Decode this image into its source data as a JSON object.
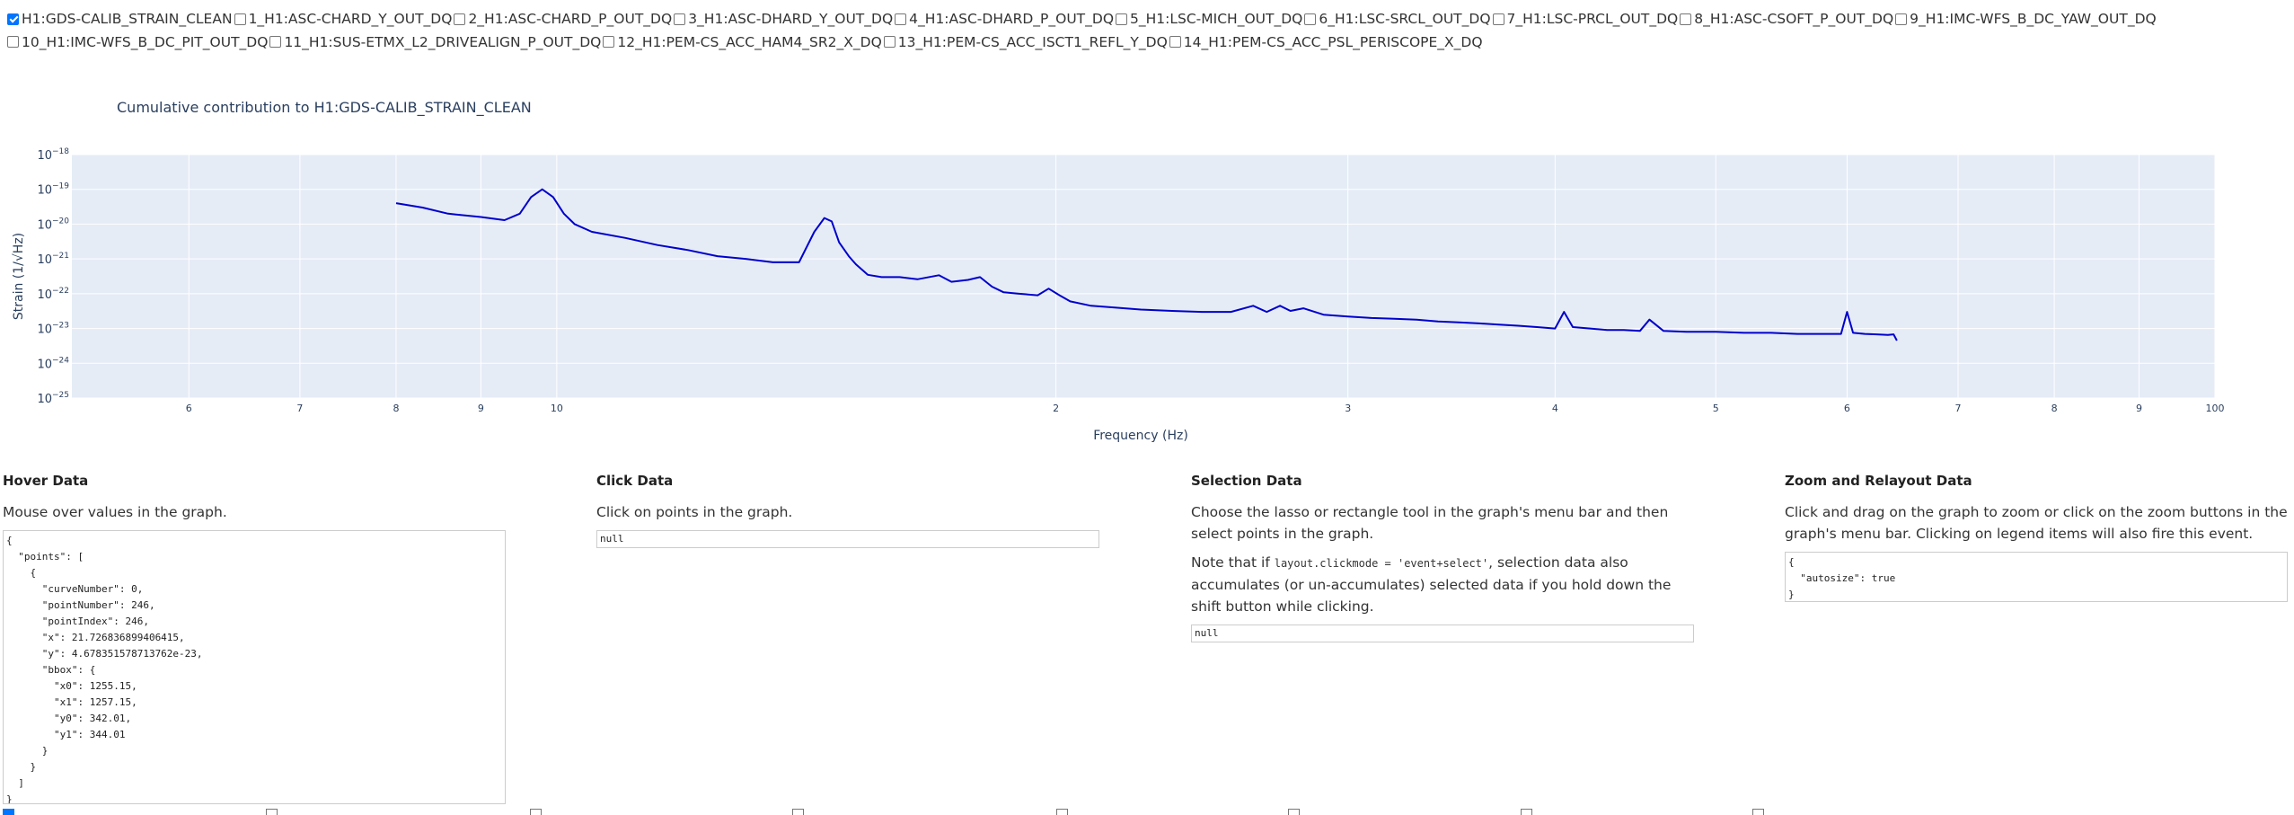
{
  "checklist": [
    {
      "label": "H1:GDS-CALIB_STRAIN_CLEAN",
      "checked": true
    },
    {
      "label": "1_H1:ASC-CHARD_Y_OUT_DQ",
      "checked": false
    },
    {
      "label": "2_H1:ASC-CHARD_P_OUT_DQ",
      "checked": false
    },
    {
      "label": "3_H1:ASC-DHARD_Y_OUT_DQ",
      "checked": false
    },
    {
      "label": "4_H1:ASC-DHARD_P_OUT_DQ",
      "checked": false
    },
    {
      "label": "5_H1:LSC-MICH_OUT_DQ",
      "checked": false
    },
    {
      "label": "6_H1:LSC-SRCL_OUT_DQ",
      "checked": false
    },
    {
      "label": "7_H1:LSC-PRCL_OUT_DQ",
      "checked": false
    },
    {
      "label": "8_H1:ASC-CSOFT_P_OUT_DQ",
      "checked": false
    },
    {
      "label": "9_H1:IMC-WFS_B_DC_YAW_OUT_DQ",
      "checked": false
    },
    {
      "label": "10_H1:IMC-WFS_B_DC_PIT_OUT_DQ",
      "checked": false
    },
    {
      "label": "11_H1:SUS-ETMX_L2_DRIVEALIGN_P_OUT_DQ",
      "checked": false
    },
    {
      "label": "12_H1:PEM-CS_ACC_HAM4_SR2_X_DQ",
      "checked": false
    },
    {
      "label": "13_H1:PEM-CS_ACC_ISCT1_REFL_Y_DQ",
      "checked": false
    },
    {
      "label": "14_H1:PEM-CS_ACC_PSL_PERISCOPE_X_DQ",
      "checked": false
    }
  ],
  "chart_data": {
    "type": "line",
    "title": "Cumulative contribution to H1:GDS-CALIB_STRAIN_CLEAN",
    "xlabel": "Frequency (Hz)",
    "ylabel": "Strain (1/√Hz)",
    "x_scale": "log",
    "y_scale": "log",
    "xlim": [
      5.1,
      100
    ],
    "ylim": [
      1e-25,
      1e-18
    ],
    "x_tick_labels": [
      "6",
      "7",
      "8",
      "9",
      "10",
      "2",
      "3",
      "4",
      "5",
      "6",
      "7",
      "8",
      "9",
      "100"
    ],
    "x_tick_values": [
      6,
      7,
      8,
      9,
      10,
      20,
      30,
      40,
      50,
      60,
      70,
      80,
      90,
      100
    ],
    "y_tick_labels": [
      {
        "base": "10",
        "exp": "−18"
      },
      {
        "base": "10",
        "exp": "−19"
      },
      {
        "base": "10",
        "exp": "−20"
      },
      {
        "base": "10",
        "exp": "−21"
      },
      {
        "base": "10",
        "exp": "−22"
      },
      {
        "base": "10",
        "exp": "−23"
      },
      {
        "base": "10",
        "exp": "−24"
      },
      {
        "base": "10",
        "exp": "−25"
      }
    ],
    "y_tick_values": [
      1e-18,
      1e-19,
      1e-20,
      1e-21,
      1e-22,
      1e-23,
      1e-24,
      1e-25
    ],
    "grid": true,
    "line_color": "#0000cc",
    "plot_bg": "#e5ecf6",
    "series": [
      {
        "x": [
          8.0,
          8.3,
          8.6,
          9.0,
          9.3,
          9.5,
          9.65,
          9.8,
          9.95,
          10.1,
          10.25,
          10.5,
          11.0,
          11.5,
          12.0,
          12.5,
          13.0,
          13.5,
          14.0,
          14.3,
          14.5,
          14.65,
          14.8,
          15.0,
          15.15,
          15.4,
          15.7,
          16.1,
          16.5,
          17.0,
          17.3,
          17.7,
          18.0,
          18.3,
          18.6,
          19.0,
          19.5,
          19.8,
          20.1,
          20.4,
          21.0,
          21.7,
          22.5,
          23.5,
          24.5,
          25.5,
          26.3,
          26.8,
          27.3,
          27.7,
          28.2,
          29.0,
          30.0,
          31.0,
          32.0,
          33.0,
          34.0,
          35.0,
          36.0,
          37.0,
          38.0,
          39.0,
          40.0,
          40.5,
          41.0,
          42.0,
          43.0,
          44.0,
          45.0,
          45.6,
          46.5,
          48.0,
          50.0,
          52.0,
          54.0,
          56.0,
          58.0,
          59.5,
          60.0,
          60.5,
          61.5,
          62.5,
          63.5,
          64.0,
          64.3
        ],
        "y": [
          4e-20,
          3e-20,
          2e-20,
          1.6e-20,
          1.3e-20,
          2e-20,
          6e-20,
          1e-19,
          6e-20,
          2e-20,
          1e-20,
          6e-21,
          4e-21,
          2.5e-21,
          1.8e-21,
          1.2e-21,
          1e-21,
          8e-22,
          8e-22,
          6e-21,
          1.5e-20,
          1.2e-20,
          3e-21,
          1.2e-21,
          7e-22,
          3.5e-22,
          3e-22,
          3e-22,
          2.6e-22,
          3.4e-22,
          2.2e-22,
          2.5e-22,
          3e-22,
          1.6e-22,
          1.1e-22,
          1e-22,
          9e-23,
          1.4e-22,
          9e-23,
          6e-23,
          4.5e-23,
          4e-23,
          3.5e-23,
          3.2e-23,
          3e-23,
          3e-23,
          4.5e-23,
          3e-23,
          4.5e-23,
          3.2e-23,
          3.8e-23,
          2.5e-23,
          2.2e-23,
          2e-23,
          1.9e-23,
          1.8e-23,
          1.6e-23,
          1.5e-23,
          1.4e-23,
          1.3e-23,
          1.2e-23,
          1.1e-23,
          1e-23,
          3e-23,
          1.1e-23,
          1e-23,
          9e-24,
          9e-24,
          8.5e-24,
          1.8e-23,
          8.5e-24,
          8e-24,
          8e-24,
          7.5e-24,
          7.5e-24,
          7e-24,
          7e-24,
          7e-24,
          3e-23,
          7.5e-24,
          7e-24,
          6.8e-24,
          6.5e-24,
          6.8e-24,
          4.5e-24
        ]
      }
    ]
  },
  "hover": {
    "title": "Hover Data",
    "desc": "Mouse over values in the graph.",
    "json": "{\n  \"points\": [\n    {\n      \"curveNumber\": 0,\n      \"pointNumber\": 246,\n      \"pointIndex\": 246,\n      \"x\": 21.726836899406415,\n      \"y\": 4.678351578713762e-23,\n      \"bbox\": {\n        \"x0\": 1255.15,\n        \"x1\": 1257.15,\n        \"y0\": 342.01,\n        \"y1\": 344.01\n      }\n    }\n  ]\n}"
  },
  "click": {
    "title": "Click Data",
    "desc": "Click on points in the graph.",
    "json": "null"
  },
  "selection": {
    "title": "Selection Data",
    "desc": "Choose the lasso or rectangle tool in the graph's menu bar and then select points in the graph.",
    "note_pre": "Note that if ",
    "note_code": "layout.clickmode = 'event+select'",
    "note_post": ", selection data also accumulates (or un-accumulates) selected data if you hold down the shift button while clicking.",
    "json": "null"
  },
  "zoom": {
    "title": "Zoom and Relayout Data",
    "desc": "Click and drag on the graph to zoom or click on the zoom buttons in the graph's menu bar. Clicking on legend items will also fire this event.",
    "json": "{\n  \"autosize\": true\n}"
  }
}
